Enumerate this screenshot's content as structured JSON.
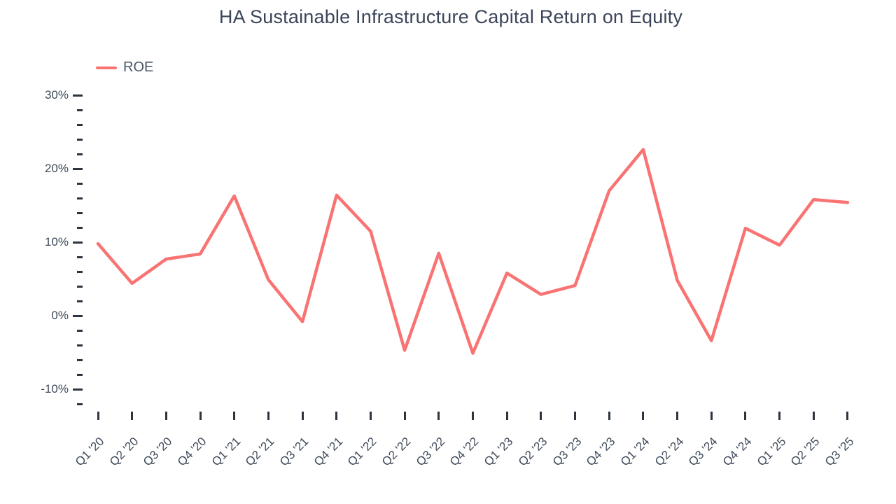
{
  "title": "HA Sustainable Infrastructure Capital Return on Equity",
  "legend": [
    {
      "label": "ROE",
      "color": "#f97373"
    }
  ],
  "colors": {
    "line": "#f97373",
    "text": "#3e4a59",
    "tick": "#2b3440",
    "background": "#ffffff"
  },
  "chart_data": {
    "type": "line",
    "title": "HA Sustainable Infrastructure Capital Return on Equity",
    "xlabel": "",
    "ylabel": "",
    "grid": false,
    "legend_position": "top-left",
    "ylim": [
      -12,
      30
    ],
    "yticks_major": [
      30,
      20,
      10,
      0,
      -10
    ],
    "ytick_suffix": "%",
    "ytick_minor_step": 2,
    "categories": [
      "Q1 '20",
      "Q2 '20",
      "Q3 '20",
      "Q4 '20",
      "Q1 '21",
      "Q2 '21",
      "Q3 '21",
      "Q4 '21",
      "Q1 '22",
      "Q2 '22",
      "Q3 '22",
      "Q4 '22",
      "Q1 '23",
      "Q2 '23",
      "Q3 '23",
      "Q4 '23",
      "Q1 '24",
      "Q2 '24",
      "Q3 '24",
      "Q4 '24",
      "Q1 '25",
      "Q2 '25",
      "Q3 '25"
    ],
    "series": [
      {
        "name": "ROE",
        "color": "#f97373",
        "values": [
          9.8,
          4.4,
          7.7,
          8.4,
          16.3,
          4.9,
          -0.8,
          16.4,
          11.5,
          -4.7,
          8.5,
          -5.1,
          5.8,
          2.9,
          4.1,
          17.0,
          22.6,
          4.8,
          -3.4,
          11.9,
          9.6,
          15.8,
          15.4
        ]
      }
    ]
  }
}
